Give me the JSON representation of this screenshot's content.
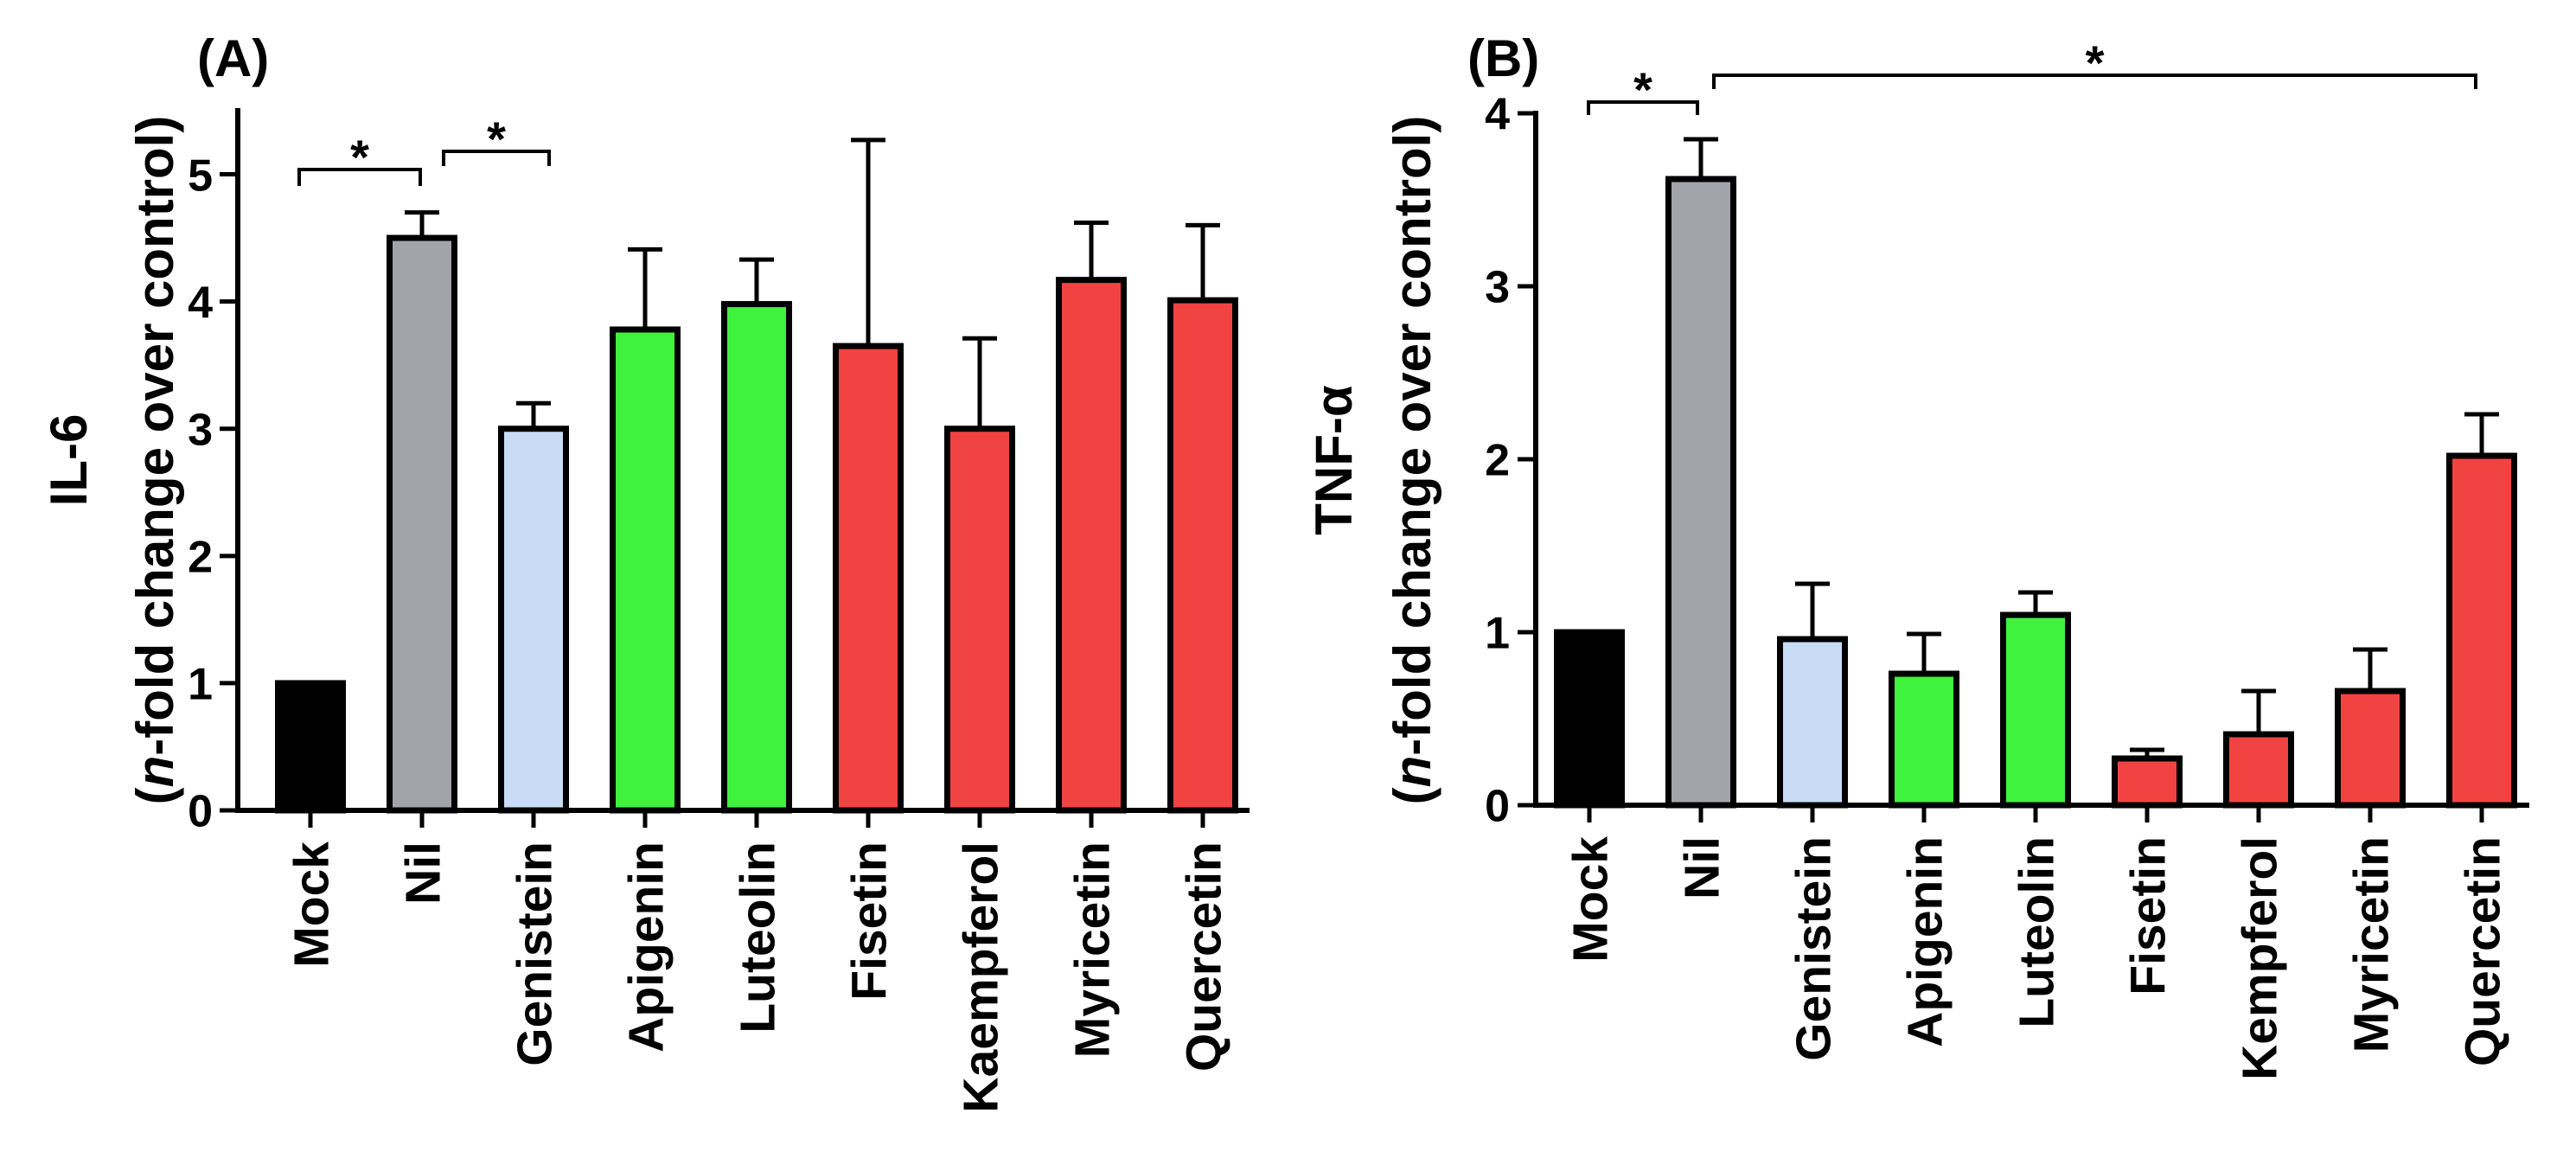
{
  "chart_data": [
    {
      "type": "bar",
      "panel_label": "(A)",
      "ylabel": [
        "IL-6",
        "(n-fold change over control)"
      ],
      "ylabel_italic": "n",
      "categories": [
        "Mock",
        "Nil",
        "Genistein",
        "Apigenin",
        "Luteolin",
        "Fisetin",
        "Kaempferol",
        "Myricetin",
        "Quercetin"
      ],
      "values": [
        1.0,
        4.5,
        3.0,
        3.78,
        3.98,
        3.65,
        3.0,
        4.17,
        4.01
      ],
      "errors": [
        null,
        0.2,
        0.2,
        0.63,
        0.35,
        1.62,
        0.71,
        0.45,
        0.59
      ],
      "colors": [
        "#000000",
        "#a3a3ab",
        "#c8dcf6",
        "#3ef23e",
        "#3ef23e",
        "#f24343",
        "#f24343",
        "#f24343",
        "#f24343"
      ],
      "ylim": [
        0,
        5.5
      ],
      "yticks": [
        0,
        1,
        2,
        3,
        4,
        5
      ],
      "grid": false,
      "significance": [
        {
          "from": "Mock",
          "to": "Nil",
          "label": "*"
        },
        {
          "from": "Nil",
          "to": "Genistein",
          "label": "*"
        }
      ]
    },
    {
      "type": "bar",
      "panel_label": "(B)",
      "ylabel": [
        "TNF-α",
        "(n-fold change over control)"
      ],
      "ylabel_italic": "n",
      "categories": [
        "Mock",
        "Nil",
        "Genistein",
        "Apigenin",
        "Luteolin",
        "Fisetin",
        "Kempferol",
        "Myricetin",
        "Quercetin"
      ],
      "values": [
        1.0,
        3.62,
        0.96,
        0.76,
        1.1,
        0.27,
        0.41,
        0.66,
        2.02
      ],
      "errors": [
        null,
        0.23,
        0.32,
        0.23,
        0.13,
        0.05,
        0.25,
        0.24,
        0.24
      ],
      "colors": [
        "#000000",
        "#a3a3ab",
        "#c8dcf6",
        "#3ef23e",
        "#3ef23e",
        "#f24343",
        "#f24343",
        "#f24343",
        "#f24343"
      ],
      "ylim": [
        0,
        4
      ],
      "yticks": [
        0,
        1,
        2,
        3,
        4
      ],
      "grid": false,
      "significance": [
        {
          "from": "Mock",
          "to": "Nil",
          "label": "*"
        },
        {
          "from": "Nil",
          "to": "Quercetin",
          "label": "*"
        }
      ]
    }
  ]
}
